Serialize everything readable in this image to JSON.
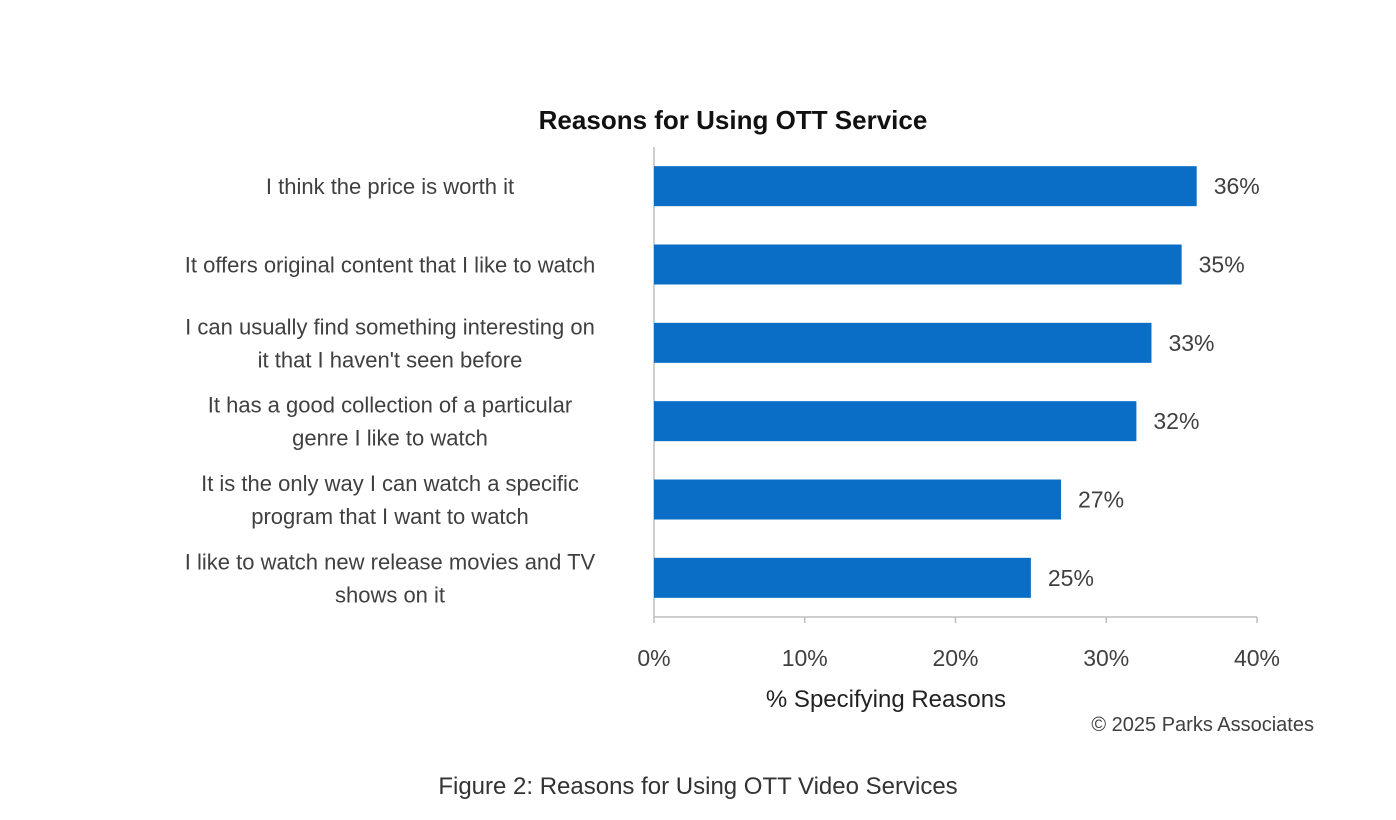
{
  "chart_data": {
    "type": "bar",
    "orientation": "horizontal",
    "title": "Reasons for Using OTT Service",
    "xlabel": "% Specifying Reasons",
    "ylabel": "",
    "categories": [
      [
        "I think the price is worth it"
      ],
      [
        "It offers original content that I like to watch"
      ],
      [
        "I can usually find something interesting on",
        "it that I haven't seen before"
      ],
      [
        "It has a good collection of a particular",
        "genre I like to watch"
      ],
      [
        "It is the only way I can watch a specific",
        "program that I want to watch"
      ],
      [
        "I like to watch new release movies and TV",
        "shows on it"
      ]
    ],
    "values": [
      36,
      35,
      33,
      32,
      27,
      25
    ],
    "value_labels": [
      "36%",
      "35%",
      "33%",
      "32%",
      "27%",
      "25%"
    ],
    "xlim": [
      0,
      40
    ],
    "xticks": [
      0,
      10,
      20,
      30,
      40
    ],
    "xtick_labels": [
      "0%",
      "10%",
      "20%",
      "30%",
      "40%"
    ],
    "grid": false,
    "legend": "none",
    "bar_color": "#0a6ec6",
    "axis_color": "#bfbfbf"
  },
  "copyright": "© 2025 Parks Associates",
  "caption": "Figure 2: Reasons for Using OTT Video Services"
}
